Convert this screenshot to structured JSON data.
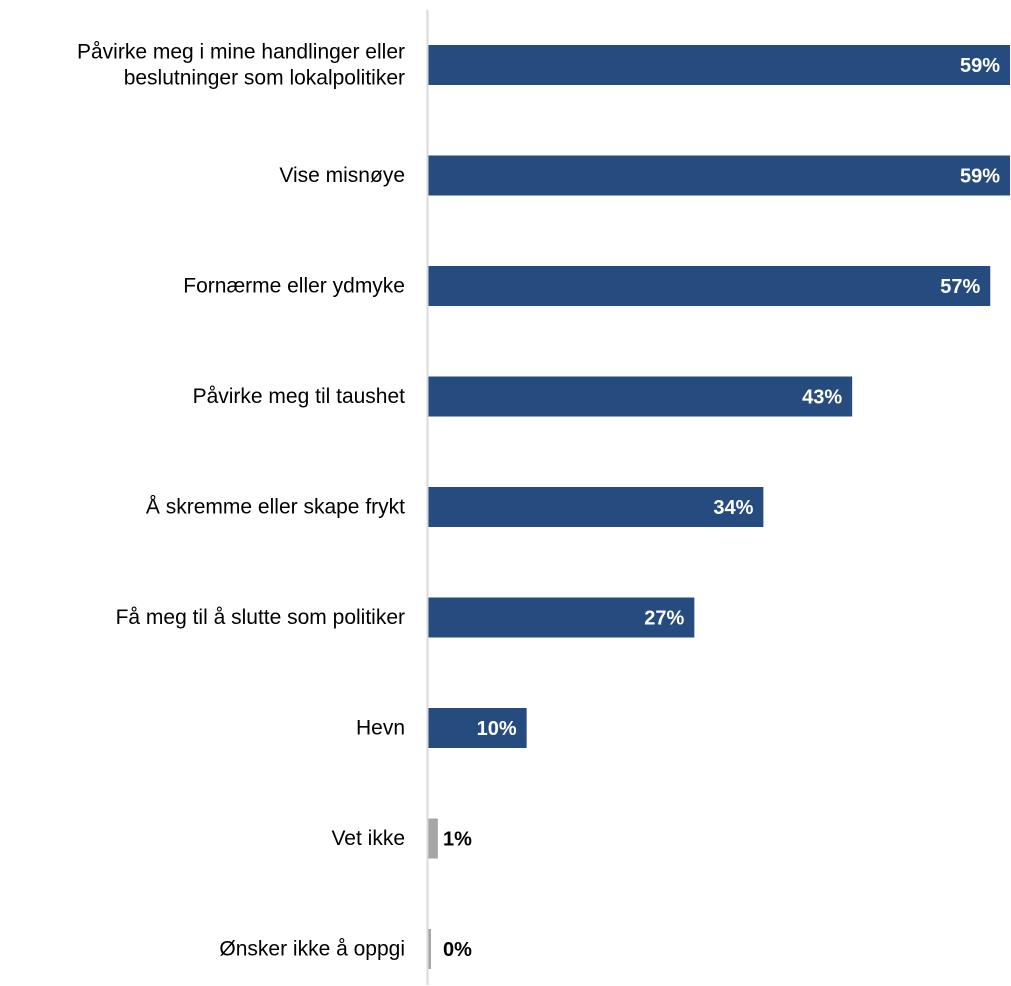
{
  "chart_data": {
    "type": "bar",
    "orientation": "horizontal",
    "categories": [
      "Påvirke meg i mine handlinger eller beslutninger som lokalpolitiker",
      "Vise misnøye",
      "Fornærme eller ydmyke",
      "Påvirke meg til taushet",
      "Å skremme eller skape frykt",
      "Få meg til å slutte som politiker",
      "Hevn",
      "Vet ikke",
      "Ønsker ikke å oppgi"
    ],
    "category_lines": [
      [
        "Påvirke meg i mine handlinger eller",
        "beslutninger som lokalpolitiker"
      ],
      [
        "Vise misnøye"
      ],
      [
        "Fornærme eller ydmyke"
      ],
      [
        "Påvirke meg til taushet"
      ],
      [
        "Å skremme eller skape frykt"
      ],
      [
        "Få meg til å slutte som politiker"
      ],
      [
        "Hevn"
      ],
      [
        "Vet ikke"
      ],
      [
        "Ønsker ikke å oppgi"
      ]
    ],
    "values": [
      59,
      59,
      57,
      43,
      34,
      27,
      10,
      1,
      0
    ],
    "value_labels": [
      "59%",
      "59%",
      "57%",
      "43%",
      "34%",
      "27%",
      "10%",
      "1%",
      "0%"
    ],
    "bar_colors": [
      "#264b7e",
      "#264b7e",
      "#264b7e",
      "#264b7e",
      "#264b7e",
      "#264b7e",
      "#264b7e",
      "#a6a6a6",
      "#a6a6a6"
    ],
    "label_colors": [
      "#ffffff",
      "#ffffff",
      "#ffffff",
      "#ffffff",
      "#ffffff",
      "#ffffff",
      "#ffffff",
      "#000000",
      "#000000"
    ],
    "xlim": [
      0,
      59
    ],
    "grid": false,
    "legend": "none",
    "axis_color": "#d9d9d9"
  }
}
